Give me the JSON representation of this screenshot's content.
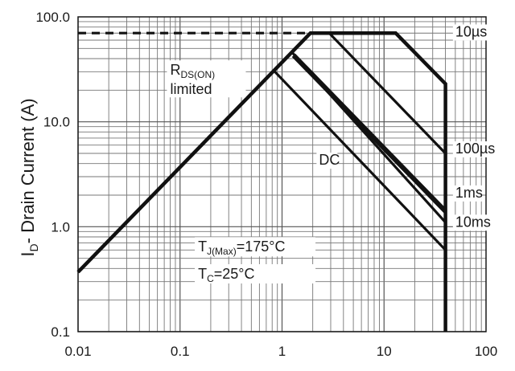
{
  "chart_data": {
    "type": "line",
    "title": "",
    "xlabel": "",
    "ylabel": "I<sub>D</sub>- Drain Current (A)",
    "ylabel_parts": {
      "main": "I",
      "sub": "D",
      "rest": "- Drain Current (A)"
    },
    "x_scale": "log",
    "y_scale": "log",
    "xlim": [
      0.01,
      100
    ],
    "ylim": [
      0.1,
      100
    ],
    "grid": true,
    "x_ticks": [
      {
        "value": 0.01,
        "label": "0.01"
      },
      {
        "value": 0.1,
        "label": "0.1"
      },
      {
        "value": 1,
        "label": "1"
      },
      {
        "value": 10,
        "label": "10"
      },
      {
        "value": 100,
        "label": "100"
      }
    ],
    "y_ticks": [
      {
        "value": 0.1,
        "label": "0.1"
      },
      {
        "value": 1,
        "label": "1.0"
      },
      {
        "value": 10,
        "label": "10.0"
      },
      {
        "value": 100,
        "label": "100.0"
      }
    ],
    "series": [
      {
        "name": "10µs",
        "label_at": {
          "x": 50,
          "y": 65
        },
        "bold": false,
        "points": [
          [
            0.01,
            0.37
          ],
          [
            1.9,
            70
          ],
          [
            13,
            70
          ],
          [
            40,
            23
          ],
          [
            40,
            0.1
          ]
        ]
      },
      {
        "name": "100µs",
        "label_at": {
          "x": 50,
          "y": 5
        },
        "bold": false,
        "points": [
          [
            1.9,
            70
          ],
          [
            2.9,
            70
          ],
          [
            40,
            5
          ]
        ]
      },
      {
        "name": "1ms",
        "label_at": {
          "x": 50,
          "y": 1.9
        },
        "bold": true,
        "points": [
          [
            1.3,
            43
          ],
          [
            40,
            1.4
          ]
        ]
      },
      {
        "name": "10ms",
        "label_at": {
          "x": 50,
          "y": 1.0
        },
        "bold": false,
        "points": [
          [
            1.25,
            46
          ],
          [
            40,
            1.1
          ]
        ]
      },
      {
        "name": "DC",
        "label_at": {
          "x": 2.3,
          "y": 3.9
        },
        "bold": false,
        "points": [
          [
            0.85,
            30
          ],
          [
            40,
            0.6
          ]
        ]
      }
    ],
    "boundary": {
      "description": "SOA envelope drawn bold",
      "points": [
        [
          0.01,
          0.37
        ],
        [
          1.9,
          70
        ],
        [
          13,
          70
        ],
        [
          40,
          23
        ],
        [
          40,
          0.1
        ]
      ]
    },
    "rds_line": {
      "style": "dashed",
      "points": [
        [
          0.01,
          70
        ],
        [
          1.9,
          70
        ]
      ]
    },
    "annotations": [
      {
        "id": "rds",
        "parts": {
          "main": "R",
          "sub": "DS(ON)",
          "line2": "limited"
        },
        "at": {
          "x": 0.08,
          "y": 28
        }
      },
      {
        "id": "tj",
        "parts": {
          "main": "T",
          "sub": "J(Max)",
          "rest": "=175°C"
        },
        "at": {
          "x": 0.15,
          "y": 0.58
        }
      },
      {
        "id": "tc",
        "parts": {
          "main": "T",
          "sub": "C",
          "rest": "=25°C"
        },
        "at": {
          "x": 0.15,
          "y": 0.32
        }
      }
    ]
  }
}
